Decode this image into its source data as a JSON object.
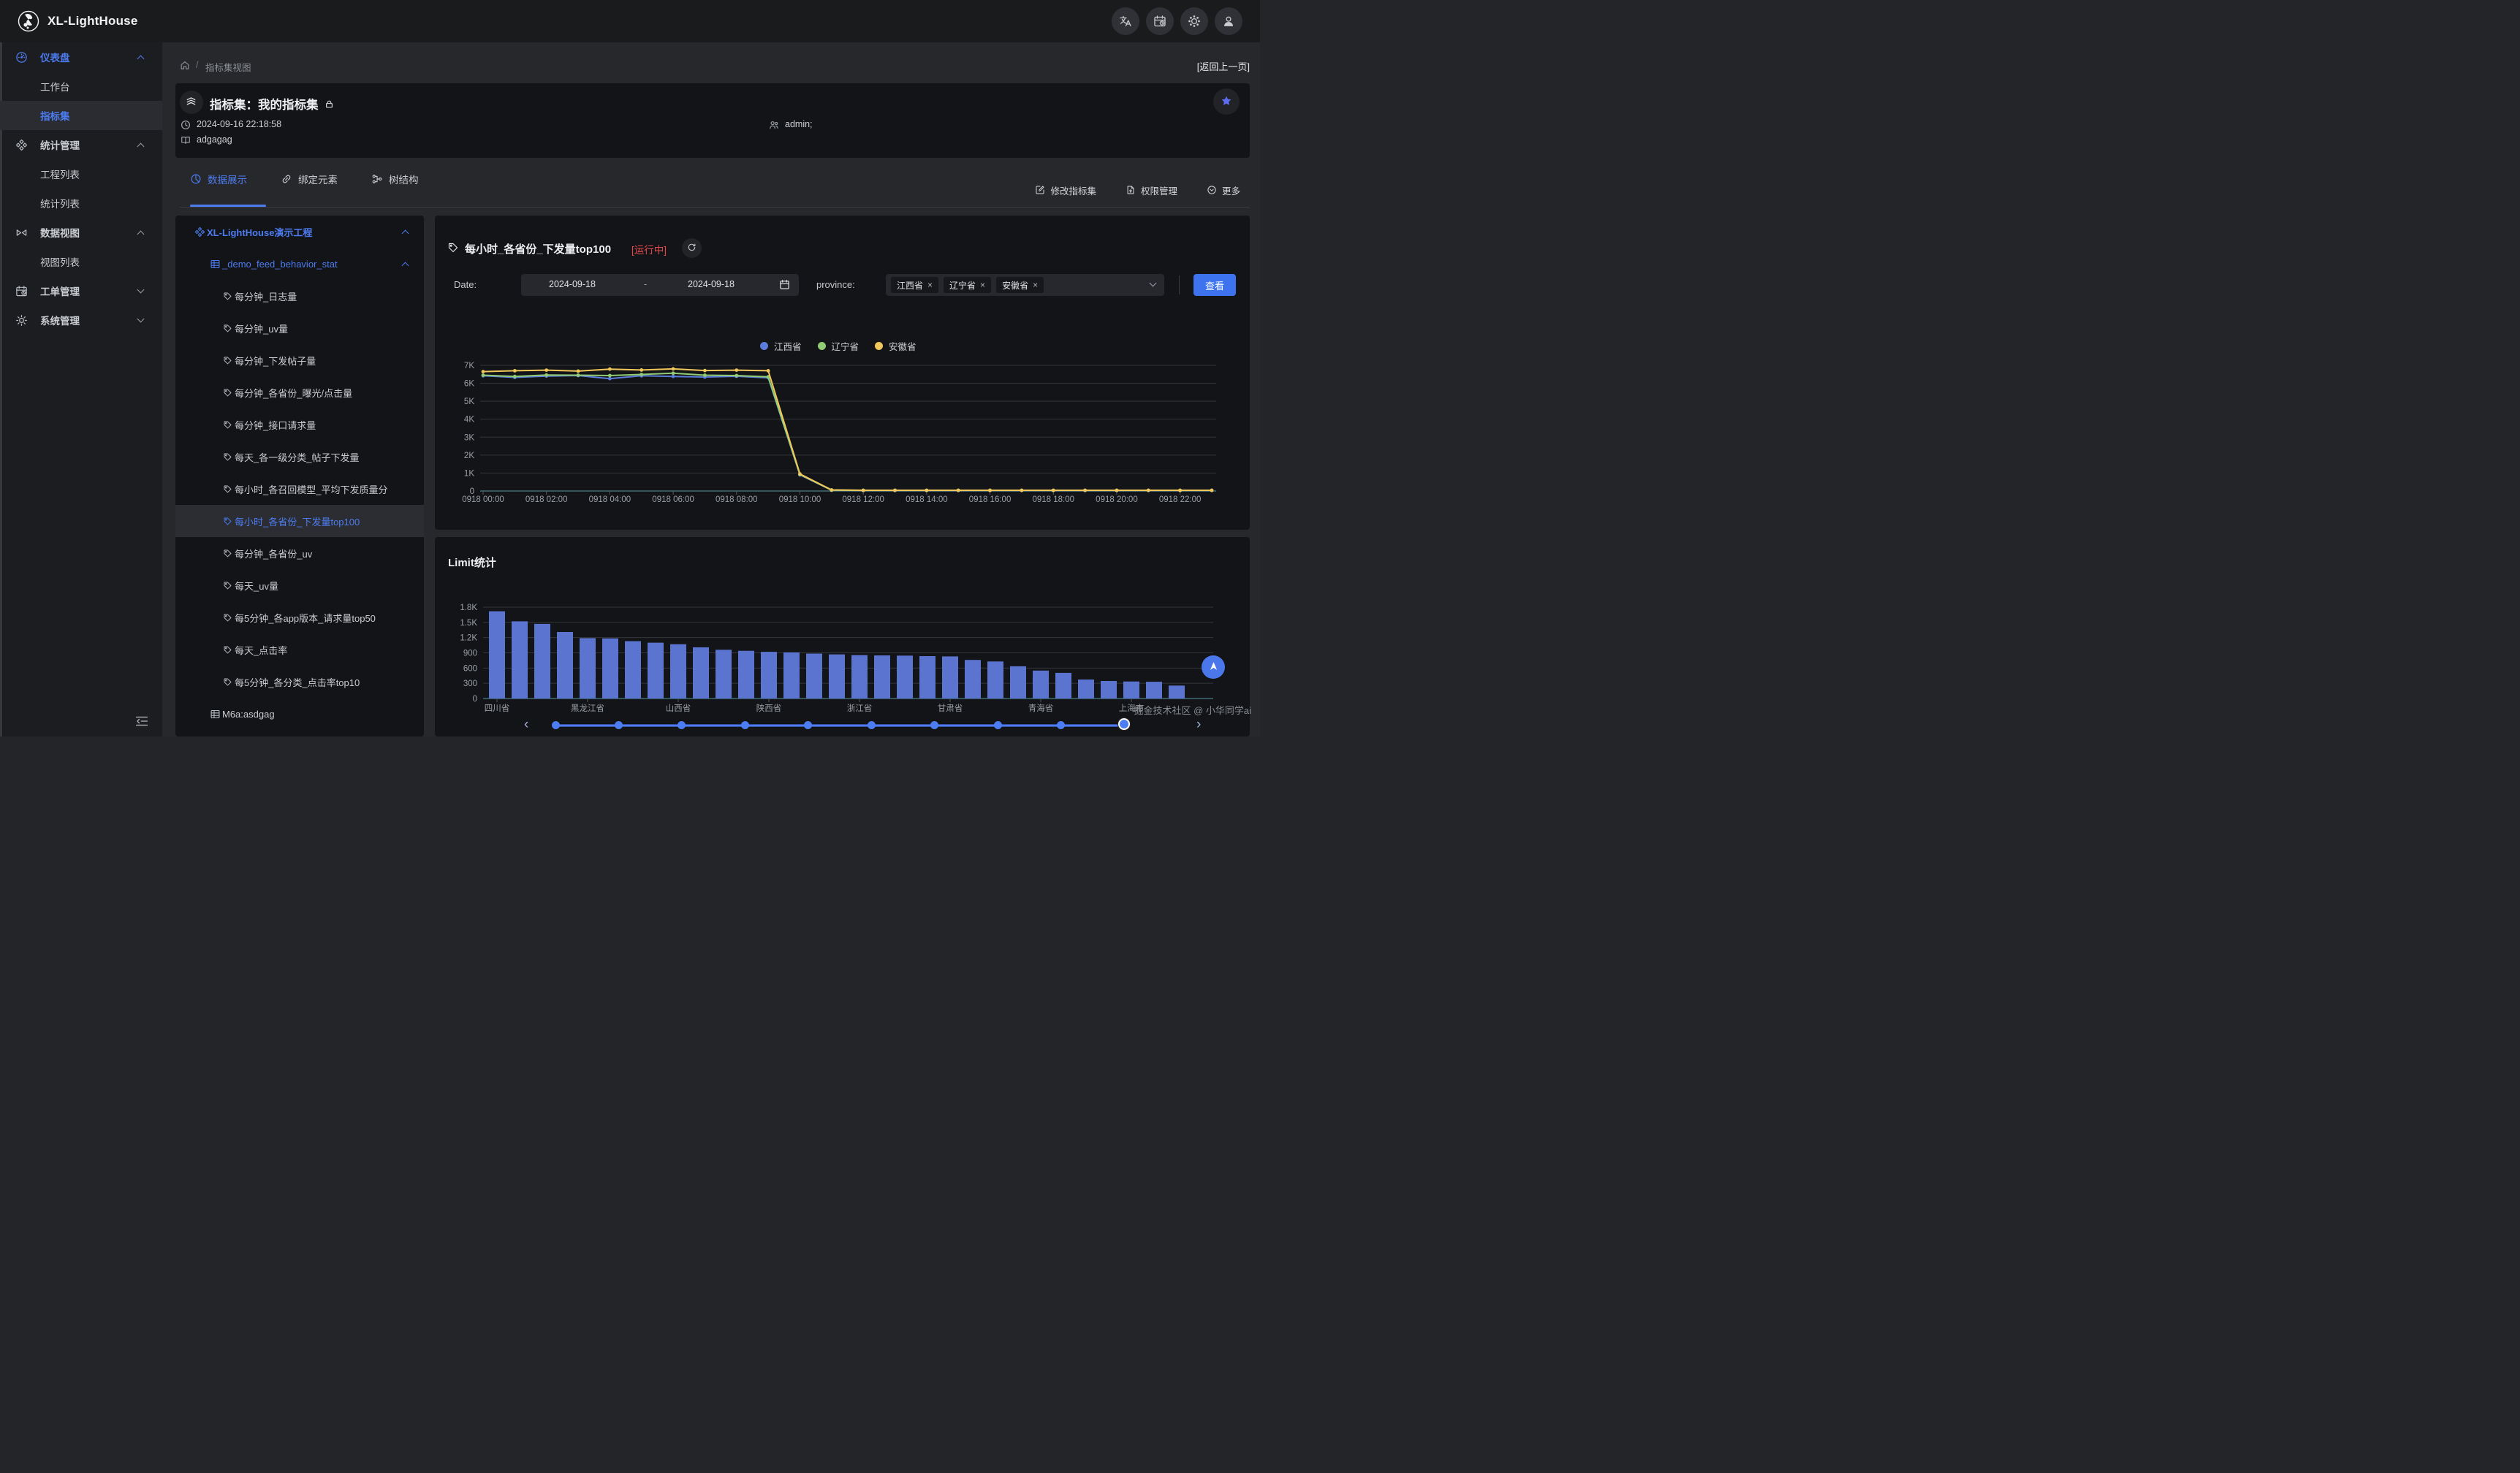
{
  "colors": {
    "accent": "#4d7cf0",
    "view_button": "#3e73f0",
    "running_status": "#e5484d",
    "series_blue": "#5b7cdb",
    "series_green": "#91cc75",
    "series_yellow": "#f0c75a",
    "bar": "#5b74cf"
  },
  "topbar": {
    "brand": "XL-LightHouse",
    "actions": [
      {
        "icon": "translate-icon"
      },
      {
        "icon": "calendar-clock-icon"
      },
      {
        "icon": "theme-icon"
      },
      {
        "icon": "user-icon"
      }
    ]
  },
  "sidebar": {
    "items": [
      {
        "label": "仪表盘",
        "icon": "dashboard-icon",
        "type": "group",
        "expanded": true,
        "active": true
      },
      {
        "label": "工作台",
        "type": "child"
      },
      {
        "label": "指标集",
        "type": "child",
        "selected": true
      },
      {
        "label": "统计管理",
        "icon": "stats-icon",
        "type": "group",
        "expanded": true
      },
      {
        "label": "工程列表",
        "type": "child"
      },
      {
        "label": "统计列表",
        "type": "child"
      },
      {
        "label": "数据视图",
        "icon": "dataview-icon",
        "type": "group",
        "expanded": true
      },
      {
        "label": "视图列表",
        "type": "child"
      },
      {
        "label": "工单管理",
        "icon": "workorder-icon",
        "type": "group",
        "expanded": false
      },
      {
        "label": "系统管理",
        "icon": "system-icon",
        "type": "group",
        "expanded": false
      }
    ]
  },
  "breadcrumb": {
    "separator": "/",
    "path": "指标集视图",
    "back": "[返回上一页]"
  },
  "header": {
    "title": "指标集：我的指标集",
    "created_at": "2024-09-16 22:18:58",
    "description": "adgagag",
    "admins": "admin;"
  },
  "tabs": [
    {
      "label": "数据展示",
      "icon": "chart-pie-icon",
      "active": true
    },
    {
      "label": "绑定元素",
      "icon": "link-icon",
      "active": false
    },
    {
      "label": "树结构",
      "icon": "tree-icon",
      "active": false
    }
  ],
  "toolbar": [
    {
      "label": "修改指标集",
      "icon": "edit-icon"
    },
    {
      "label": "权限管理",
      "icon": "permission-icon"
    },
    {
      "label": "更多",
      "icon": "more-icon"
    }
  ],
  "tree": {
    "project": "XL-LightHouse演示工程",
    "table": "_demo_feed_behavior_stat",
    "items": [
      "每分钟_日志量",
      "每分钟_uv量",
      "每分钟_下发帖子量",
      "每分钟_各省份_曝光/点击量",
      "每分钟_接口请求量",
      "每天_各一级分类_帖子下发量",
      "每小时_各召回模型_平均下发质量分",
      "每小时_各省份_下发量top100",
      "每分钟_各省份_uv",
      "每天_uv量",
      "每5分钟_各app版本_请求量top50",
      "每天_点击率",
      "每5分钟_各分类_点击率top10"
    ],
    "selected": "每小时_各省份_下发量top100",
    "table2": "M6a:asdgag"
  },
  "panel": {
    "title": "每小时_各省份_下发量top100",
    "status": "[运行中]",
    "date_label": "Date:",
    "date_from": "2024-09-18",
    "date_separator": "-",
    "date_to": "2024-09-18",
    "province_label": "province:",
    "province_tags": [
      "江西省",
      "辽宁省",
      "安徽省"
    ],
    "view_button": "查看"
  },
  "limit_panel": {
    "title": "Limit统计"
  },
  "watermark": "掘金技术社区 @ 小华同学ai",
  "timeline": {
    "dot_count": 10,
    "active_index": 9,
    "prev": "‹",
    "next": "›"
  },
  "chart_data": [
    {
      "type": "line",
      "title": "每小时_各省份_下发量top100",
      "x": [
        "0918 00:00",
        "0918 01:00",
        "0918 02:00",
        "0918 03:00",
        "0918 04:00",
        "0918 05:00",
        "0918 06:00",
        "0918 07:00",
        "0918 08:00",
        "0918 09:00",
        "0918 10:00",
        "0918 11:00",
        "0918 12:00",
        "0918 13:00",
        "0918 14:00",
        "0918 15:00",
        "0918 16:00",
        "0918 17:00",
        "0918 18:00",
        "0918 19:00",
        "0918 20:00",
        "0918 21:00",
        "0918 22:00",
        "0918 23:00"
      ],
      "x_label_interval": 2,
      "ylim": [
        0,
        7000
      ],
      "ytick_labels": [
        "0",
        "1K",
        "2K",
        "3K",
        "4K",
        "5K",
        "6K",
        "7K"
      ],
      "grid": true,
      "legend_position": "top-center",
      "series": [
        {
          "name": "江西省",
          "color": "#5b7cdb",
          "values": [
            6420,
            6330,
            6400,
            6430,
            6260,
            6420,
            6380,
            6350,
            6390,
            6310,
            900,
            45,
            30,
            30,
            30,
            30,
            30,
            30,
            30,
            30,
            30,
            30,
            30,
            30
          ]
        },
        {
          "name": "辽宁省",
          "color": "#91cc75",
          "values": [
            6450,
            6380,
            6460,
            6450,
            6430,
            6490,
            6560,
            6450,
            6430,
            6360,
            920,
            50,
            35,
            35,
            35,
            35,
            35,
            35,
            35,
            35,
            35,
            35,
            35,
            35
          ]
        },
        {
          "name": "安徽省",
          "color": "#f0c75a",
          "values": [
            6650,
            6700,
            6730,
            6680,
            6790,
            6740,
            6800,
            6710,
            6730,
            6700,
            950,
            60,
            40,
            40,
            40,
            40,
            40,
            40,
            40,
            40,
            40,
            40,
            40,
            40
          ]
        }
      ]
    },
    {
      "type": "bar",
      "title": "Limit统计",
      "values": [
        1720,
        1520,
        1470,
        1310,
        1190,
        1185,
        1130,
        1100,
        1070,
        1010,
        960,
        940,
        920,
        910,
        885,
        870,
        855,
        850,
        845,
        835,
        830,
        760,
        730,
        635,
        550,
        505,
        375,
        345,
        335,
        330,
        255
      ],
      "x_tick_labels": [
        "四川省",
        "黑龙江省",
        "山西省",
        "陕西省",
        "浙江省",
        "甘肃省",
        "青海省",
        "上海市"
      ],
      "x_tick_every": 4,
      "bar_color": "#5b74cf",
      "ylim": [
        0,
        1800
      ],
      "ytick_labels": [
        "0",
        "300",
        "600",
        "900",
        "1.2K",
        "1.5K",
        "1.8K"
      ],
      "grid": true
    }
  ]
}
